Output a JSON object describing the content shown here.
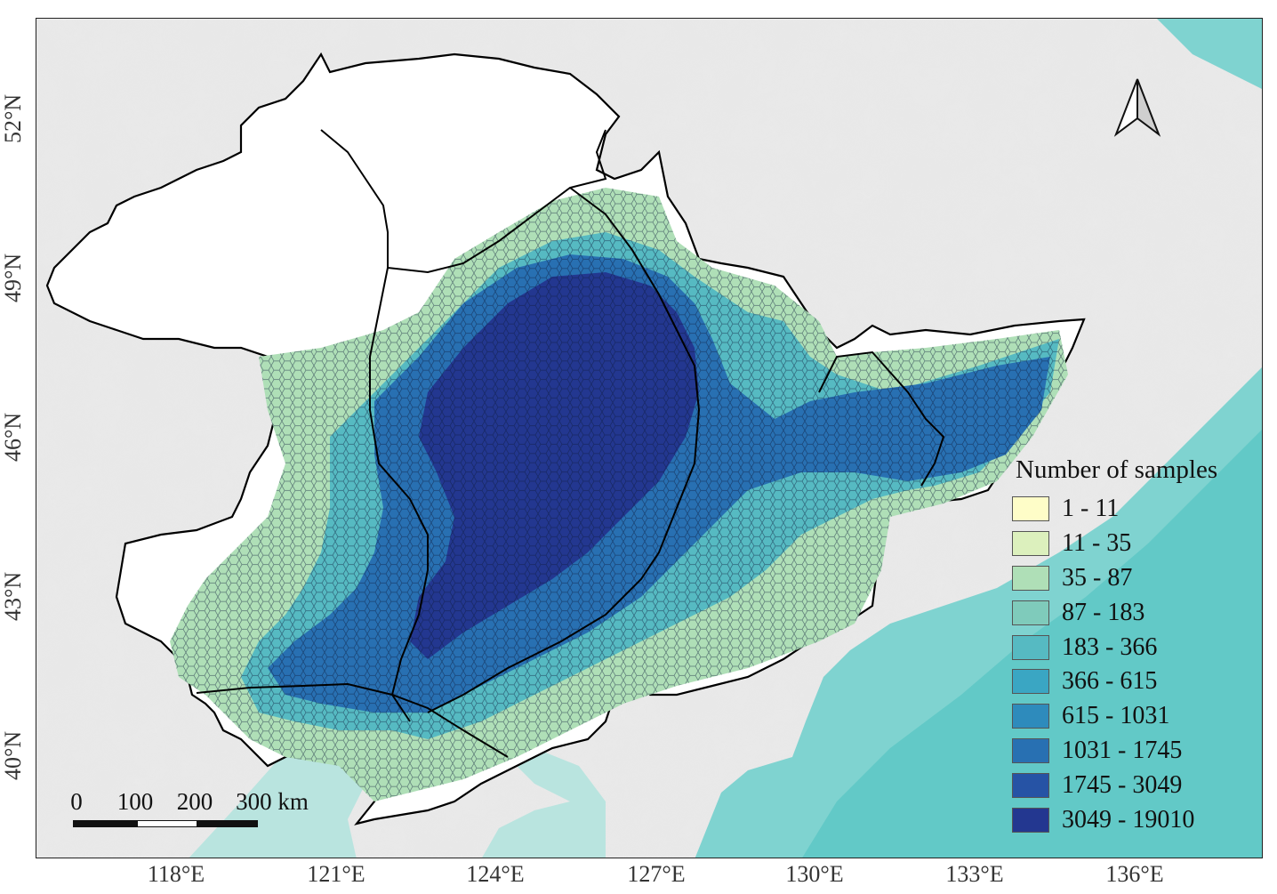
{
  "map": {
    "lon_ticks": [
      "118°E",
      "121°E",
      "124°E",
      "127°E",
      "130°E",
      "133°E",
      "136°E"
    ],
    "lat_ticks": [
      "40°N",
      "43°N",
      "46°N",
      "49°N",
      "52°N"
    ]
  },
  "legend": {
    "title": "Number of samples",
    "classes": [
      {
        "label": "1 - 11",
        "color": "#fefdc8"
      },
      {
        "label": "11 - 35",
        "color": "#dcf0bd"
      },
      {
        "label": "35 - 87",
        "color": "#afdfb7"
      },
      {
        "label": "87 - 183",
        "color": "#7fcbbb"
      },
      {
        "label": "183 - 366",
        "color": "#56bac2"
      },
      {
        "label": "366 - 615",
        "color": "#3aa6c3"
      },
      {
        "label": "615 - 1031",
        "color": "#2e8bbc"
      },
      {
        "label": "1031 - 1745",
        "color": "#2870b2"
      },
      {
        "label": "1745 - 3049",
        "color": "#2653a5"
      },
      {
        "label": "3049 - 19010",
        "color": "#233790"
      }
    ]
  },
  "scalebar": {
    "labels": [
      "0",
      "100",
      "200",
      "300 km"
    ]
  },
  "north_arrow": {
    "icon": "north-arrow-icon"
  }
}
